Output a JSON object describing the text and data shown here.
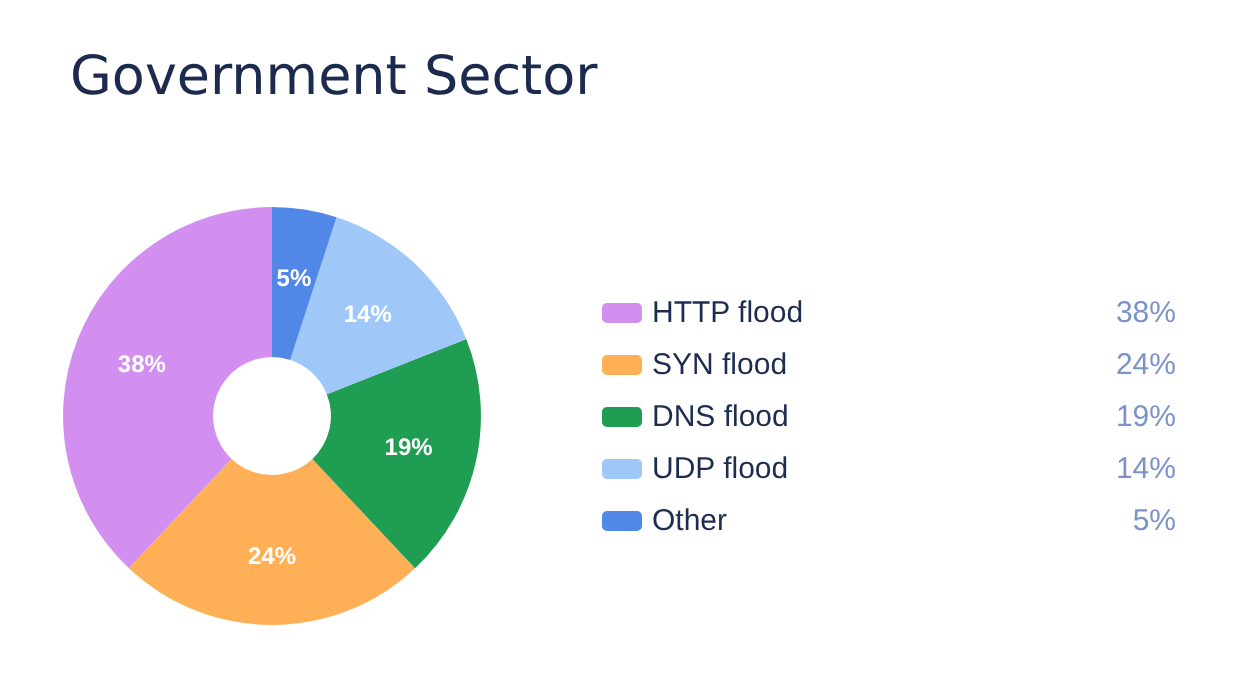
{
  "chart_data": {
    "type": "donut",
    "title": "Government Sector",
    "categories": [
      "HTTP flood",
      "SYN flood",
      "DNS flood",
      "UDP flood",
      "Other"
    ],
    "values": [
      38,
      24,
      19,
      14,
      5
    ],
    "value_labels": [
      "38%",
      "24%",
      "19%",
      "14%",
      "5%"
    ],
    "colors": [
      "#d28ff0",
      "#ffb057",
      "#1f9e53",
      "#9fc8f8",
      "#5188e8"
    ],
    "legend": "right"
  }
}
